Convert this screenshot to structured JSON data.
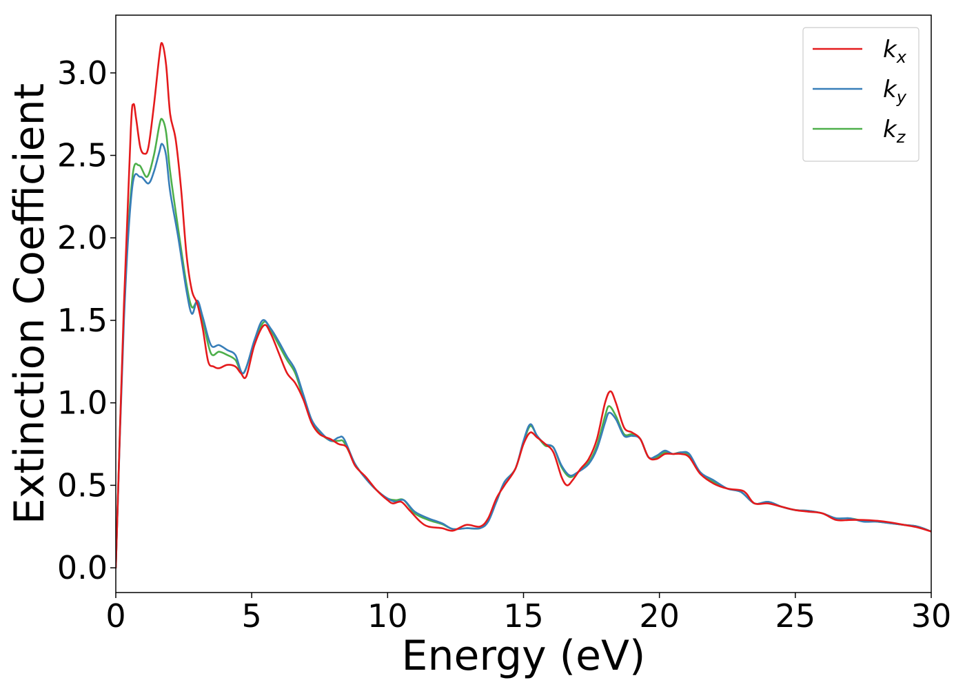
{
  "chart_data": {
    "type": "line",
    "title": "",
    "xlabel": "Energy (eV)",
    "ylabel": "Extinction Coefficient",
    "xlim": [
      0,
      30
    ],
    "ylim": [
      -0.15,
      3.35
    ],
    "xticks": [
      0,
      5,
      10,
      15,
      20,
      25,
      30
    ],
    "xtick_labels": [
      "0",
      "5",
      "10",
      "15",
      "20",
      "25",
      "30"
    ],
    "yticks": [
      0.0,
      0.5,
      1.0,
      1.5,
      2.0,
      2.5,
      3.0
    ],
    "ytick_labels": [
      "0.0",
      "0.5",
      "1.0",
      "1.5",
      "2.0",
      "2.5",
      "3.0"
    ],
    "grid": false,
    "legend_position": "top-right",
    "series": [
      {
        "name": "k_x",
        "label_base": "k",
        "label_sub": "x",
        "color": "#e41a1c",
        "points": [
          [
            0,
            0.0
          ],
          [
            0.3,
            1.6
          ],
          [
            0.55,
            2.65
          ],
          [
            0.65,
            2.81
          ],
          [
            0.75,
            2.72
          ],
          [
            0.9,
            2.55
          ],
          [
            1.05,
            2.51
          ],
          [
            1.2,
            2.55
          ],
          [
            1.4,
            2.8
          ],
          [
            1.6,
            3.1
          ],
          [
            1.7,
            3.18
          ],
          [
            1.85,
            3.05
          ],
          [
            2.0,
            2.75
          ],
          [
            2.2,
            2.6
          ],
          [
            2.4,
            2.3
          ],
          [
            2.6,
            1.9
          ],
          [
            2.8,
            1.68
          ],
          [
            3.0,
            1.6
          ],
          [
            3.2,
            1.45
          ],
          [
            3.4,
            1.25
          ],
          [
            3.6,
            1.22
          ],
          [
            3.8,
            1.21
          ],
          [
            4.1,
            1.23
          ],
          [
            4.4,
            1.22
          ],
          [
            4.6,
            1.18
          ],
          [
            4.8,
            1.16
          ],
          [
            5.1,
            1.35
          ],
          [
            5.45,
            1.47
          ],
          [
            5.7,
            1.42
          ],
          [
            6.0,
            1.3
          ],
          [
            6.3,
            1.18
          ],
          [
            6.6,
            1.12
          ],
          [
            6.9,
            1.02
          ],
          [
            7.2,
            0.88
          ],
          [
            7.5,
            0.81
          ],
          [
            7.9,
            0.78
          ],
          [
            8.2,
            0.75
          ],
          [
            8.5,
            0.73
          ],
          [
            8.8,
            0.62
          ],
          [
            9.2,
            0.55
          ],
          [
            9.6,
            0.47
          ],
          [
            10.0,
            0.41
          ],
          [
            10.2,
            0.39
          ],
          [
            10.5,
            0.4
          ],
          [
            10.8,
            0.35
          ],
          [
            11.2,
            0.28
          ],
          [
            11.5,
            0.25
          ],
          [
            12.0,
            0.24
          ],
          [
            12.4,
            0.225
          ],
          [
            12.9,
            0.26
          ],
          [
            13.4,
            0.25
          ],
          [
            13.7,
            0.3
          ],
          [
            14.0,
            0.42
          ],
          [
            14.3,
            0.5
          ],
          [
            14.7,
            0.6
          ],
          [
            15.0,
            0.75
          ],
          [
            15.25,
            0.82
          ],
          [
            15.5,
            0.79
          ],
          [
            15.8,
            0.75
          ],
          [
            16.1,
            0.7
          ],
          [
            16.4,
            0.55
          ],
          [
            16.6,
            0.5
          ],
          [
            16.8,
            0.53
          ],
          [
            17.1,
            0.6
          ],
          [
            17.4,
            0.66
          ],
          [
            17.7,
            0.78
          ],
          [
            18.0,
            1.0
          ],
          [
            18.2,
            1.07
          ],
          [
            18.4,
            1.0
          ],
          [
            18.7,
            0.85
          ],
          [
            19.0,
            0.82
          ],
          [
            19.3,
            0.78
          ],
          [
            19.6,
            0.67
          ],
          [
            19.9,
            0.66
          ],
          [
            20.2,
            0.69
          ],
          [
            20.5,
            0.69
          ],
          [
            20.8,
            0.69
          ],
          [
            21.1,
            0.67
          ],
          [
            21.5,
            0.57
          ],
          [
            22.0,
            0.51
          ],
          [
            22.5,
            0.48
          ],
          [
            23.0,
            0.47
          ],
          [
            23.2,
            0.45
          ],
          [
            23.5,
            0.39
          ],
          [
            24.0,
            0.39
          ],
          [
            24.5,
            0.37
          ],
          [
            25.0,
            0.35
          ],
          [
            25.5,
            0.34
          ],
          [
            26.0,
            0.33
          ],
          [
            26.5,
            0.29
          ],
          [
            27.0,
            0.29
          ],
          [
            27.5,
            0.29
          ],
          [
            28.0,
            0.285
          ],
          [
            28.5,
            0.275
          ],
          [
            29.0,
            0.26
          ],
          [
            29.5,
            0.245
          ],
          [
            30.0,
            0.22
          ]
        ]
      },
      {
        "name": "k_y",
        "label_base": "k",
        "label_sub": "y",
        "color": "#377eb8",
        "points": [
          [
            0,
            0.0
          ],
          [
            0.3,
            1.5
          ],
          [
            0.6,
            2.3
          ],
          [
            0.9,
            2.37
          ],
          [
            1.2,
            2.33
          ],
          [
            1.4,
            2.4
          ],
          [
            1.6,
            2.52
          ],
          [
            1.7,
            2.57
          ],
          [
            1.85,
            2.5
          ],
          [
            2.0,
            2.28
          ],
          [
            2.3,
            2.0
          ],
          [
            2.6,
            1.68
          ],
          [
            2.8,
            1.54
          ],
          [
            3.0,
            1.62
          ],
          [
            3.2,
            1.52
          ],
          [
            3.5,
            1.35
          ],
          [
            3.8,
            1.35
          ],
          [
            4.1,
            1.32
          ],
          [
            4.4,
            1.29
          ],
          [
            4.7,
            1.18
          ],
          [
            5.1,
            1.38
          ],
          [
            5.4,
            1.5
          ],
          [
            5.7,
            1.45
          ],
          [
            6.0,
            1.37
          ],
          [
            6.3,
            1.28
          ],
          [
            6.6,
            1.2
          ],
          [
            6.9,
            1.05
          ],
          [
            7.2,
            0.9
          ],
          [
            7.5,
            0.83
          ],
          [
            7.9,
            0.77
          ],
          [
            8.2,
            0.79
          ],
          [
            8.4,
            0.78
          ],
          [
            8.8,
            0.63
          ],
          [
            9.2,
            0.54
          ],
          [
            9.6,
            0.47
          ],
          [
            10.0,
            0.42
          ],
          [
            10.3,
            0.4
          ],
          [
            10.6,
            0.41
          ],
          [
            11.0,
            0.34
          ],
          [
            11.5,
            0.3
          ],
          [
            12.0,
            0.27
          ],
          [
            12.4,
            0.235
          ],
          [
            12.9,
            0.24
          ],
          [
            13.4,
            0.24
          ],
          [
            13.7,
            0.28
          ],
          [
            14.0,
            0.4
          ],
          [
            14.3,
            0.52
          ],
          [
            14.7,
            0.6
          ],
          [
            15.0,
            0.77
          ],
          [
            15.25,
            0.87
          ],
          [
            15.5,
            0.8
          ],
          [
            15.8,
            0.75
          ],
          [
            16.1,
            0.73
          ],
          [
            16.4,
            0.62
          ],
          [
            16.7,
            0.56
          ],
          [
            17.0,
            0.58
          ],
          [
            17.4,
            0.63
          ],
          [
            17.7,
            0.72
          ],
          [
            18.0,
            0.88
          ],
          [
            18.15,
            0.94
          ],
          [
            18.4,
            0.9
          ],
          [
            18.7,
            0.8
          ],
          [
            19.0,
            0.8
          ],
          [
            19.3,
            0.78
          ],
          [
            19.6,
            0.67
          ],
          [
            19.9,
            0.68
          ],
          [
            20.2,
            0.71
          ],
          [
            20.5,
            0.69
          ],
          [
            20.8,
            0.7
          ],
          [
            21.1,
            0.69
          ],
          [
            21.5,
            0.58
          ],
          [
            22.0,
            0.53
          ],
          [
            22.5,
            0.48
          ],
          [
            23.0,
            0.46
          ],
          [
            23.5,
            0.39
          ],
          [
            24.0,
            0.4
          ],
          [
            24.5,
            0.37
          ],
          [
            25.0,
            0.35
          ],
          [
            25.5,
            0.345
          ],
          [
            26.0,
            0.33
          ],
          [
            26.5,
            0.3
          ],
          [
            27.0,
            0.3
          ],
          [
            27.5,
            0.28
          ],
          [
            28.0,
            0.28
          ],
          [
            28.5,
            0.27
          ],
          [
            29.0,
            0.26
          ],
          [
            29.5,
            0.25
          ],
          [
            30.0,
            0.22
          ]
        ]
      },
      {
        "name": "k_z",
        "label_base": "k",
        "label_sub": "z",
        "color": "#4daf4a",
        "points": [
          [
            0,
            0.0
          ],
          [
            0.3,
            1.55
          ],
          [
            0.6,
            2.35
          ],
          [
            0.85,
            2.44
          ],
          [
            1.15,
            2.37
          ],
          [
            1.4,
            2.5
          ],
          [
            1.6,
            2.68
          ],
          [
            1.7,
            2.72
          ],
          [
            1.85,
            2.64
          ],
          [
            2.0,
            2.4
          ],
          [
            2.3,
            2.05
          ],
          [
            2.6,
            1.72
          ],
          [
            2.8,
            1.58
          ],
          [
            3.0,
            1.61
          ],
          [
            3.2,
            1.5
          ],
          [
            3.5,
            1.3
          ],
          [
            3.8,
            1.31
          ],
          [
            4.1,
            1.29
          ],
          [
            4.4,
            1.26
          ],
          [
            4.7,
            1.18
          ],
          [
            5.1,
            1.37
          ],
          [
            5.45,
            1.49
          ],
          [
            5.7,
            1.44
          ],
          [
            6.0,
            1.35
          ],
          [
            6.3,
            1.26
          ],
          [
            6.6,
            1.18
          ],
          [
            6.9,
            1.03
          ],
          [
            7.2,
            0.89
          ],
          [
            7.5,
            0.82
          ],
          [
            7.9,
            0.77
          ],
          [
            8.2,
            0.77
          ],
          [
            8.4,
            0.76
          ],
          [
            8.8,
            0.63
          ],
          [
            9.2,
            0.54
          ],
          [
            9.6,
            0.47
          ],
          [
            10.0,
            0.42
          ],
          [
            10.3,
            0.41
          ],
          [
            10.6,
            0.41
          ],
          [
            11.0,
            0.33
          ],
          [
            11.5,
            0.29
          ],
          [
            12.0,
            0.265
          ],
          [
            12.4,
            0.235
          ],
          [
            12.9,
            0.24
          ],
          [
            13.4,
            0.24
          ],
          [
            13.7,
            0.29
          ],
          [
            14.0,
            0.4
          ],
          [
            14.3,
            0.52
          ],
          [
            14.7,
            0.6
          ],
          [
            15.0,
            0.76
          ],
          [
            15.25,
            0.86
          ],
          [
            15.5,
            0.8
          ],
          [
            15.8,
            0.74
          ],
          [
            16.1,
            0.73
          ],
          [
            16.4,
            0.61
          ],
          [
            16.7,
            0.55
          ],
          [
            17.0,
            0.58
          ],
          [
            17.4,
            0.64
          ],
          [
            17.7,
            0.74
          ],
          [
            18.0,
            0.92
          ],
          [
            18.15,
            0.98
          ],
          [
            18.4,
            0.92
          ],
          [
            18.7,
            0.81
          ],
          [
            19.0,
            0.81
          ],
          [
            19.3,
            0.78
          ],
          [
            19.6,
            0.67
          ],
          [
            19.9,
            0.67
          ],
          [
            20.2,
            0.7
          ],
          [
            20.5,
            0.69
          ],
          [
            20.8,
            0.7
          ],
          [
            21.1,
            0.68
          ],
          [
            21.5,
            0.58
          ],
          [
            22.0,
            0.52
          ],
          [
            22.5,
            0.48
          ],
          [
            23.0,
            0.46
          ],
          [
            23.5,
            0.39
          ],
          [
            24.0,
            0.4
          ],
          [
            24.5,
            0.37
          ],
          [
            25.0,
            0.35
          ],
          [
            25.5,
            0.345
          ],
          [
            26.0,
            0.33
          ],
          [
            26.5,
            0.3
          ],
          [
            27.0,
            0.3
          ],
          [
            27.5,
            0.285
          ],
          [
            28.0,
            0.28
          ],
          [
            28.5,
            0.27
          ],
          [
            29.0,
            0.26
          ],
          [
            29.5,
            0.25
          ],
          [
            30.0,
            0.22
          ]
        ]
      }
    ]
  }
}
